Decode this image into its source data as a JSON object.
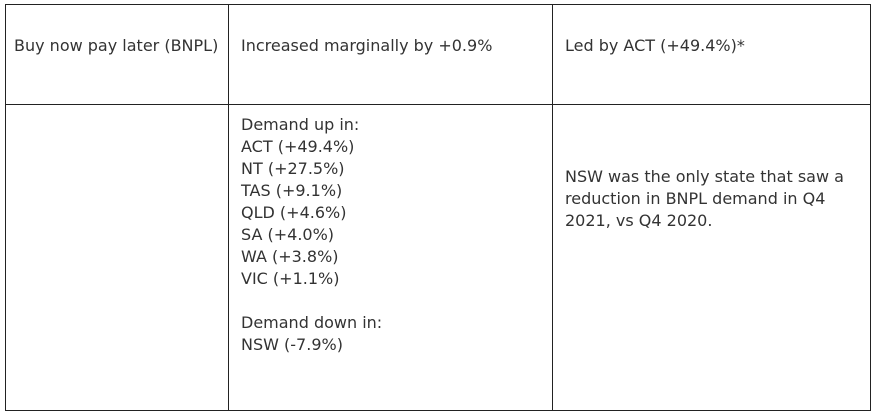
{
  "row1": {
    "category": "Buy now pay later (BNPL)",
    "change": "Increased marginally by +0.9%",
    "highlight": "Led by ACT (+49.4%)*"
  },
  "row2": {
    "col1": "",
    "up_heading": "Demand up in:",
    "up_items": [
      "ACT (+49.4%)",
      "NT (+27.5%)",
      "TAS (+9.1%)",
      "QLD (+4.6%)",
      "SA (+4.0%)",
      "WA (+3.8%)",
      "VIC (+1.1%)"
    ],
    "down_heading": "Demand down in:",
    "down_items": [
      "NSW (-7.9%)"
    ],
    "note": "NSW was the only state that saw a reduction in BNPL demand in Q4 2021, vs Q4 2020."
  }
}
